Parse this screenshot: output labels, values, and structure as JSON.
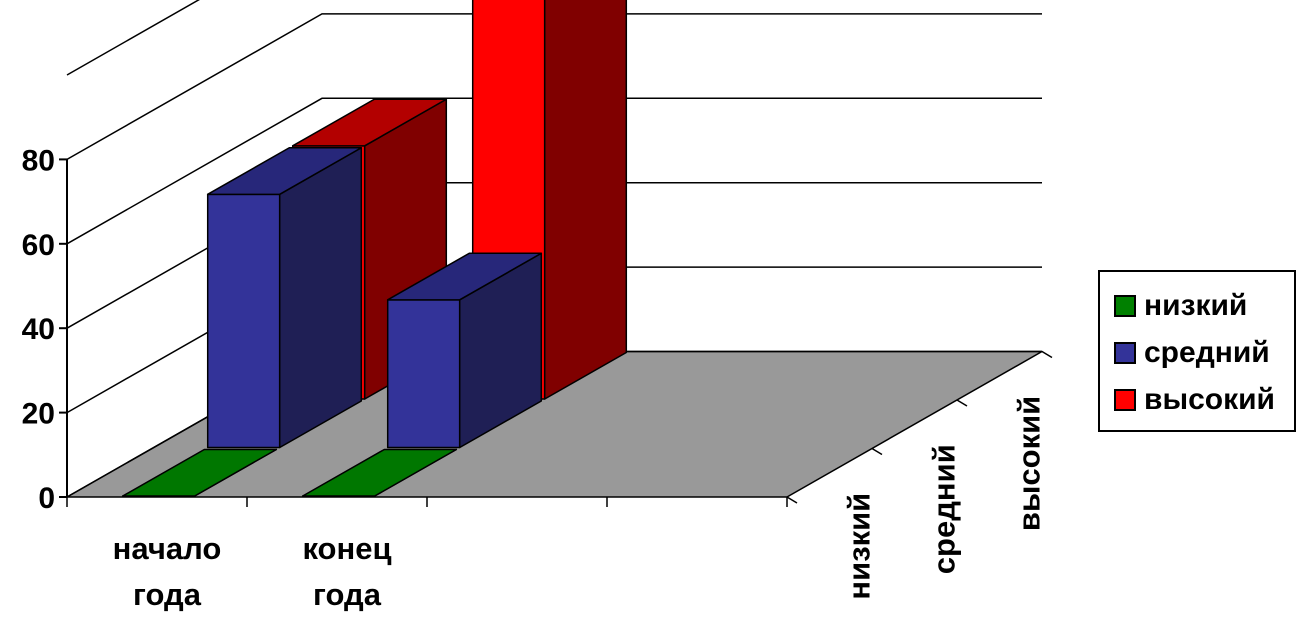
{
  "chart_data": {
    "type": "bar",
    "style": "3d-clustered-depth",
    "categories": [
      "начало года",
      "конец года"
    ],
    "series": [
      {
        "name": "низкий",
        "color": "#008000",
        "values": [
          0,
          0
        ]
      },
      {
        "name": "средний",
        "color": "#333399",
        "values": [
          60,
          35
        ]
      },
      {
        "name": "высокий",
        "color": "#ff0000",
        "values": [
          60,
          95
        ]
      }
    ],
    "yticks": [
      0,
      20,
      40,
      60,
      80
    ],
    "ylim": [
      0,
      100
    ],
    "grid": true,
    "legend": "right",
    "depth_labels": [
      "низкий",
      "средний",
      "высокий"
    ]
  },
  "palette": {
    "floor": "#999999",
    "wall_grid": "#000000",
    "green_top": "#007700",
    "blue_side": "#1f1f55",
    "red_side": "#800000",
    "red_top": "#b30000",
    "blue_top": "#27277a"
  },
  "legend": {
    "items": [
      {
        "label": "низкий",
        "color": "#008000"
      },
      {
        "label": "средний",
        "color": "#333399"
      },
      {
        "label": "высокий",
        "color": "#ff0000"
      }
    ]
  }
}
